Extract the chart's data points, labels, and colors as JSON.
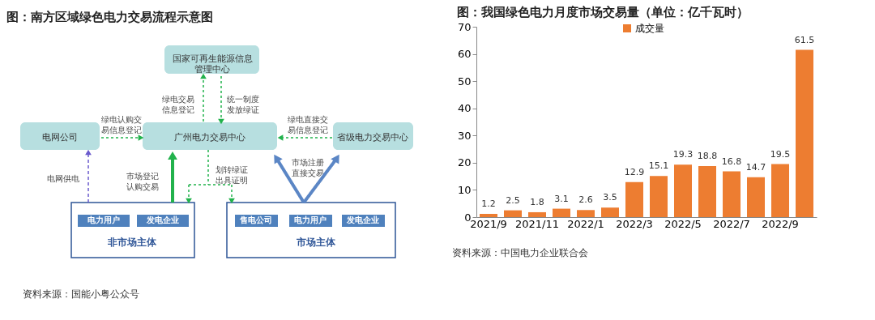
{
  "chart_data": [
    {
      "type": "other",
      "title": "图：南方区域绿色电力交易流程示意图",
      "annotations": [
        "国家可再生能源信息管理中心",
        "电网公司",
        "广州电力交易中心",
        "省级电力交易中心",
        "绿电交易信息登记",
        "统一制度发放绿证",
        "绿电认购交易信息登记",
        "绿电直接交易信息登记",
        "电网供电",
        "市场登记认购交易",
        "划转绿证出具证明",
        "市场注册直接交易",
        "电力用户",
        "发电企业",
        "非市场主体",
        "售电公司",
        "电力用户",
        "发电企业",
        "市场主体",
        "资料来源：国能小粤公众号"
      ]
    },
    {
      "type": "bar",
      "title": "图：我国绿色电力月度市场交易量（单位：亿千瓦时）",
      "categories": [
        "2021/9",
        null,
        "2021/11",
        null,
        "2022/1",
        null,
        "2022/3",
        null,
        "2022/5",
        null,
        "2022/7",
        null,
        "2022/9",
        null
      ],
      "series": [
        {
          "name": "成交量",
          "color": "#ed7d31",
          "values": [
            1.2,
            2.5,
            1.8,
            3.1,
            2.6,
            3.5,
            12.9,
            15.1,
            19.3,
            18.8,
            16.8,
            14.7,
            19.5,
            61.5
          ]
        }
      ],
      "ylim": [
        0,
        70
      ],
      "yticks": [
        0,
        10,
        20,
        30,
        40,
        50,
        60,
        70
      ],
      "data_labels": true,
      "legend": "top",
      "grid": false,
      "annotations": [
        "资料来源：中国电力企业联合会"
      ]
    }
  ]
}
